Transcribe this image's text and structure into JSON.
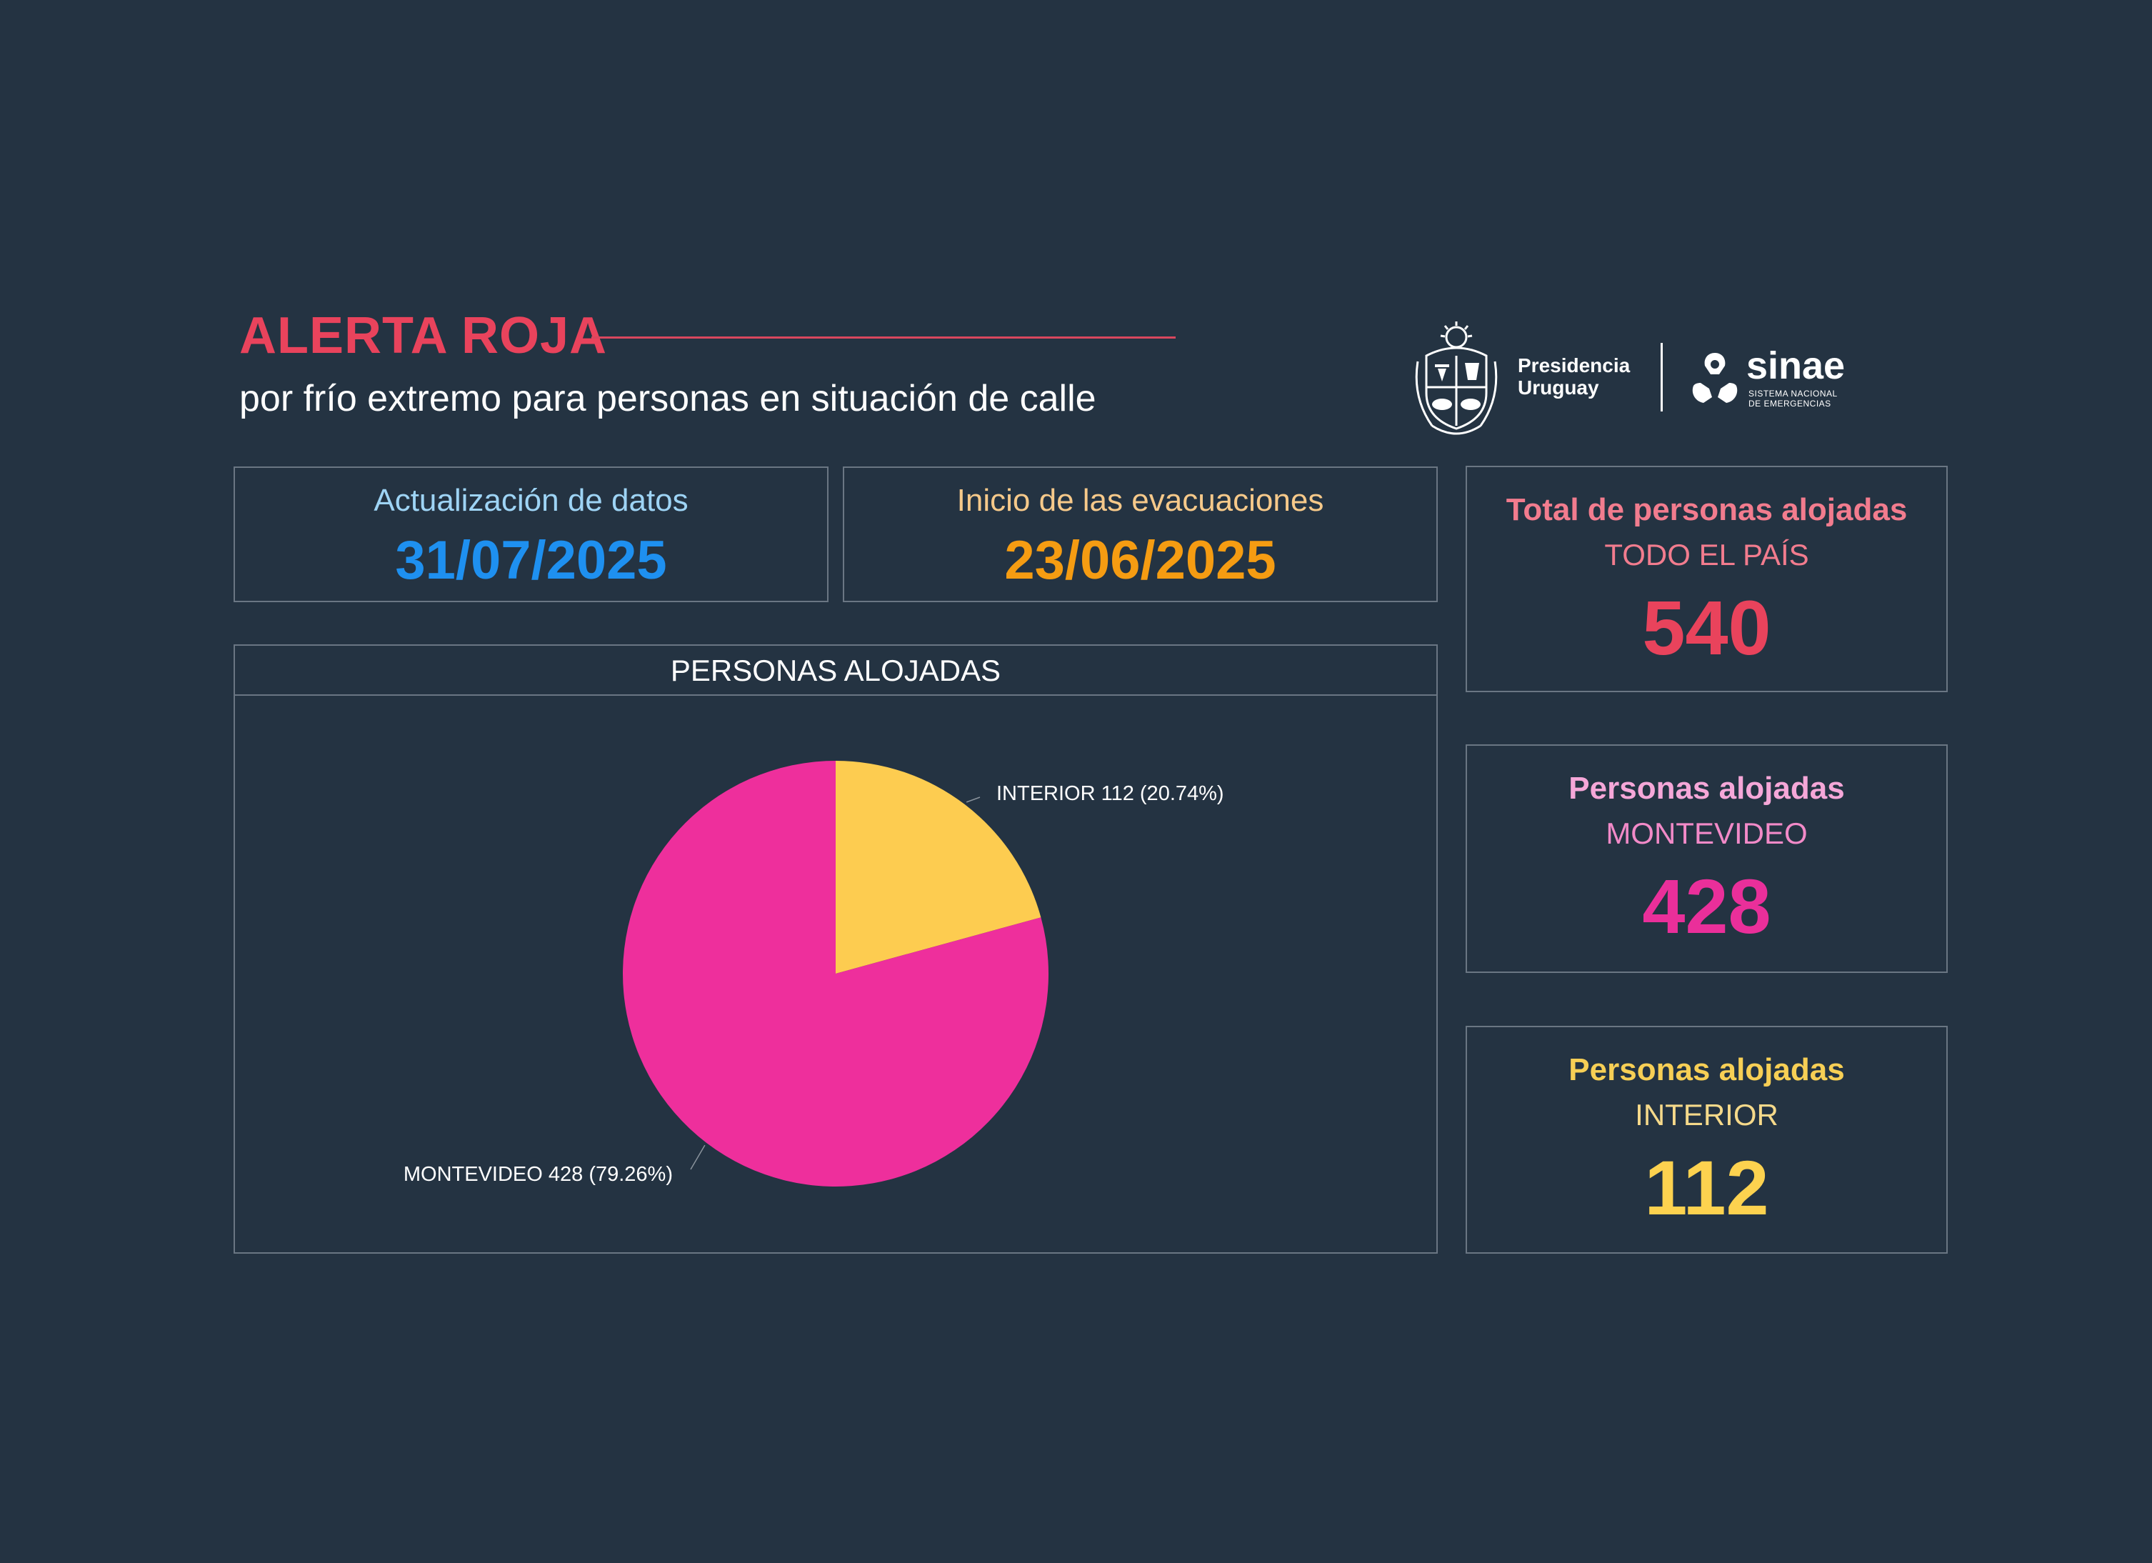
{
  "header": {
    "title": "ALERTA ROJA",
    "subtitle": "por frío extremo para personas en situación de calle"
  },
  "logos": {
    "presidencia_line1": "Presidencia",
    "presidencia_line2": "Uruguay",
    "sinae": "sinae",
    "sinae_sub_line1": "SISTEMA NACIONAL",
    "sinae_sub_line2": "DE EMERGENCIAS"
  },
  "dates": {
    "update_label": "Actualización de datos",
    "update_value": "31/07/2025",
    "evac_label": "Inicio de las evacuaciones",
    "evac_value": "23/06/2025"
  },
  "stats": {
    "total": {
      "label": "Total de personas alojadas",
      "sub": "TODO EL PAÍS",
      "value": "540"
    },
    "montevideo": {
      "label": "Personas alojadas",
      "sub": "MONTEVIDEO",
      "value": "428"
    },
    "interior": {
      "label": "Personas alojadas",
      "sub": "INTERIOR",
      "value": "112"
    }
  },
  "colors": {
    "background": "#243342",
    "alert_red": "#e9435c",
    "update_label": "#9ed4f5",
    "update_value": "#1e90f0",
    "evac_label": "#f6c98a",
    "evac_value": "#f59c12",
    "total_label": "#f27c8e",
    "total_value": "#e9435c",
    "montevideo_label": "#f5a7d8",
    "montevideo_value": "#ea2f9a",
    "interior_label": "#f7cf55",
    "interior_value": "#fdd24f"
  },
  "chart_data": {
    "type": "pie",
    "title": "PERSONAS ALOJADAS",
    "slices": [
      {
        "label": "INTERIOR",
        "value": 112,
        "percent": 20.74,
        "display": "INTERIOR 112 (20.74%)",
        "color": "#fdcc50"
      },
      {
        "label": "MONTEVIDEO",
        "value": 428,
        "percent": 79.26,
        "display": "MONTEVIDEO 428 (79.26%)",
        "color": "#ee2f9c"
      }
    ]
  }
}
